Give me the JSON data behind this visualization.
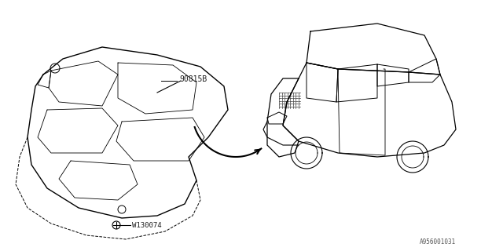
{
  "bg_color": "#ffffff",
  "line_color": "#000000",
  "text_color": "#1a1a1a",
  "part_label_1": "90815B",
  "part_label_2": "W130074",
  "diagram_id": "A956001031",
  "fig_width": 6.4,
  "fig_height": 3.2,
  "dpi": 100
}
